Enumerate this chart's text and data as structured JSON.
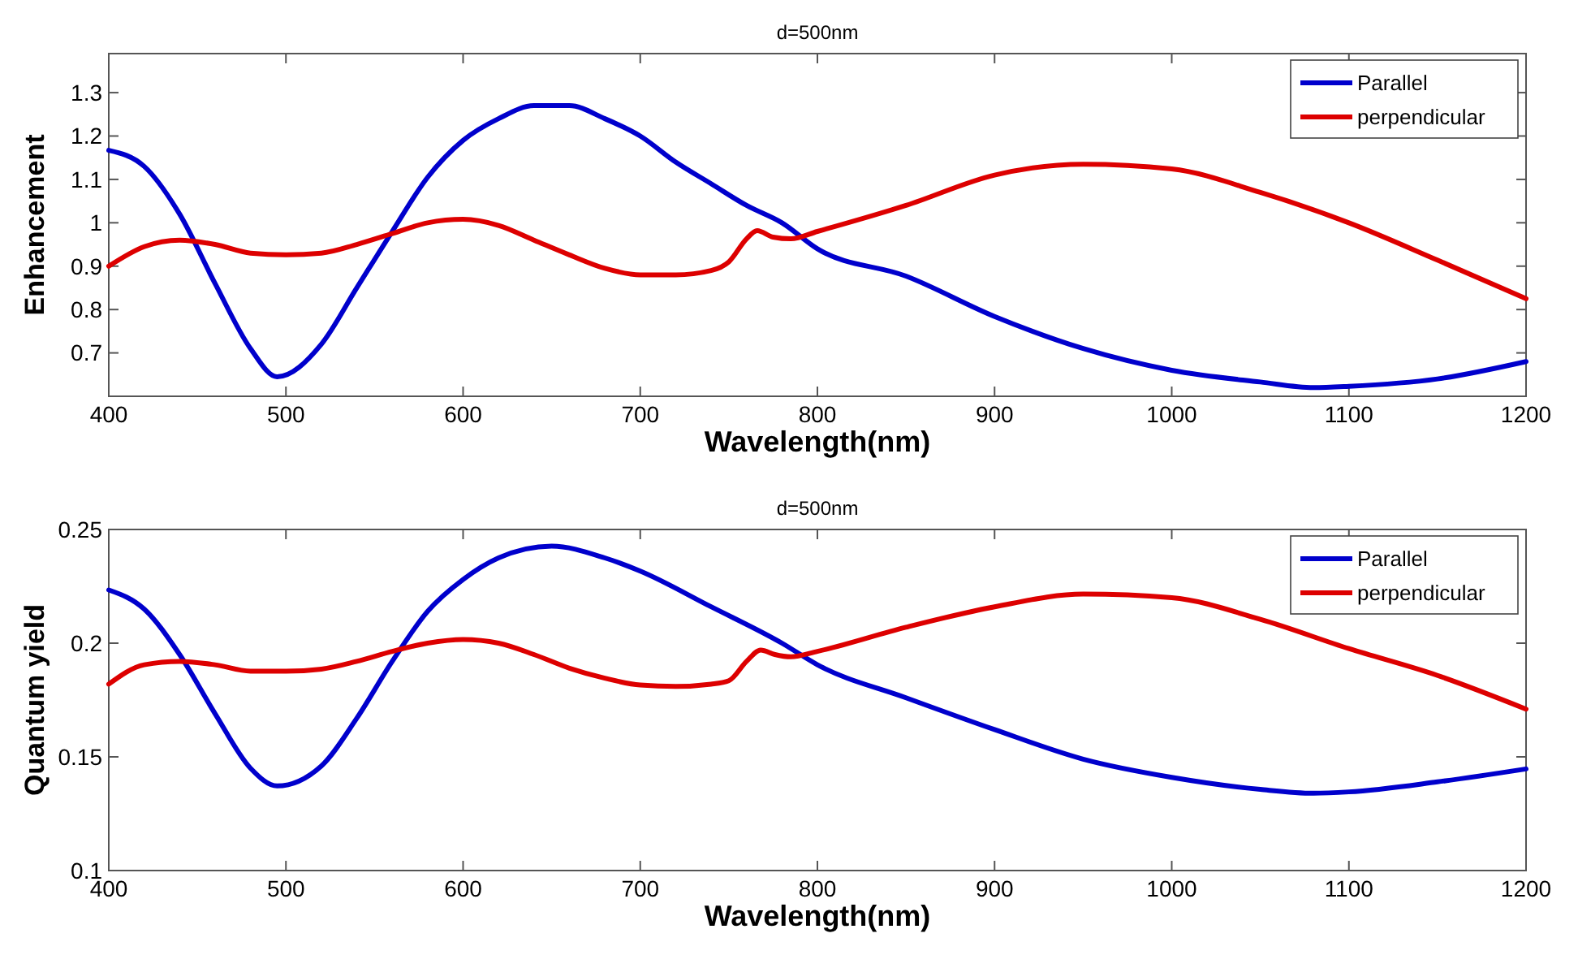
{
  "chart_data": [
    {
      "type": "line",
      "title": "d=500nm",
      "xlabel": "Wavelength(nm)",
      "ylabel": "Enhancement",
      "xlim": [
        400,
        1200
      ],
      "ylim": [
        0.6,
        1.39
      ],
      "xticks": [
        400,
        500,
        600,
        700,
        800,
        900,
        1000,
        1100,
        1200
      ],
      "yticks": [
        0.7,
        0.8,
        0.9,
        1,
        1.1,
        1.2,
        1.3
      ],
      "legend": "top right",
      "grid": false,
      "series": [
        {
          "name": "Parallel",
          "color": "#0000cc",
          "x": [
            400,
            420,
            440,
            460,
            480,
            495,
            520,
            540,
            560,
            580,
            600,
            620,
            640,
            660,
            680,
            700,
            720,
            740,
            760,
            780,
            800,
            850,
            900,
            950,
            1000,
            1050,
            1080,
            1100,
            1150,
            1200
          ],
          "values": [
            1.167,
            1.13,
            1.02,
            0.86,
            0.71,
            0.645,
            0.72,
            0.85,
            0.98,
            1.105,
            1.19,
            1.24,
            1.27,
            1.27,
            1.24,
            1.2,
            1.14,
            1.09,
            1.04,
            1.0,
            0.94,
            0.877,
            0.784,
            0.71,
            0.66,
            0.633,
            0.62,
            0.623,
            0.64,
            0.68
          ]
        },
        {
          "name": "perpendicular",
          "color": "#dd0000",
          "x": [
            400,
            420,
            440,
            460,
            480,
            500,
            520,
            540,
            560,
            580,
            600,
            620,
            640,
            660,
            680,
            700,
            720,
            740,
            750,
            760,
            766,
            775,
            785,
            800,
            850,
            900,
            950,
            1000,
            1050,
            1100,
            1150,
            1200
          ],
          "values": [
            0.9,
            0.945,
            0.96,
            0.95,
            0.93,
            0.926,
            0.93,
            0.95,
            0.975,
            1.0,
            1.008,
            0.994,
            0.96,
            0.926,
            0.895,
            0.88,
            0.88,
            0.89,
            0.91,
            0.963,
            0.982,
            0.967,
            0.963,
            0.98,
            1.04,
            1.11,
            1.135,
            1.124,
            1.07,
            1.0,
            0.914,
            0.825
          ]
        }
      ]
    },
    {
      "type": "line",
      "title": "d=500nm",
      "xlabel": "Wavelength(nm)",
      "ylabel": "Quantum yield",
      "xlim": [
        400,
        1200
      ],
      "ylim": [
        0.1,
        0.25
      ],
      "xticks": [
        400,
        500,
        600,
        700,
        800,
        900,
        1000,
        1100,
        1200
      ],
      "yticks": [
        0.1,
        0.15,
        0.2,
        0.25
      ],
      "legend": "top right",
      "grid": false,
      "series": [
        {
          "name": "Parallel",
          "color": "#0000cc",
          "x": [
            400,
            420,
            440,
            460,
            480,
            495,
            520,
            540,
            560,
            580,
            600,
            620,
            650,
            680,
            700,
            740,
            780,
            800,
            850,
            900,
            950,
            1000,
            1050,
            1080,
            1100,
            1150,
            1200
          ],
          "values": [
            0.2234,
            0.215,
            0.195,
            0.169,
            0.145,
            0.1372,
            0.146,
            0.167,
            0.192,
            0.214,
            0.228,
            0.2375,
            0.2427,
            0.2375,
            0.2317,
            0.216,
            0.2,
            0.1905,
            0.176,
            0.162,
            0.149,
            0.141,
            0.1357,
            0.134,
            0.1346,
            0.139,
            0.1447
          ]
        },
        {
          "name": "perpendicular",
          "color": "#dd0000",
          "x": [
            400,
            420,
            440,
            460,
            480,
            500,
            520,
            540,
            560,
            580,
            600,
            620,
            640,
            660,
            680,
            700,
            720,
            740,
            750,
            760,
            768,
            776,
            785,
            800,
            850,
            900,
            950,
            1000,
            1050,
            1100,
            1150,
            1200
          ],
          "values": [
            0.182,
            0.1905,
            0.192,
            0.1905,
            0.1877,
            0.1877,
            0.1886,
            0.192,
            0.1964,
            0.2,
            0.2016,
            0.2,
            0.195,
            0.189,
            0.1846,
            0.1816,
            0.181,
            0.182,
            0.1835,
            0.192,
            0.197,
            0.195,
            0.194,
            0.1964,
            0.207,
            0.216,
            0.2216,
            0.22,
            0.2105,
            0.1976,
            0.1858,
            0.171
          ]
        }
      ]
    }
  ]
}
